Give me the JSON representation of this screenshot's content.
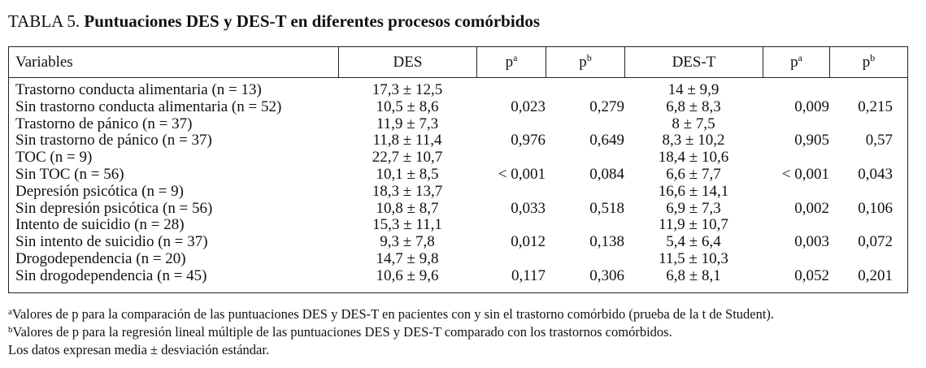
{
  "title": {
    "label": "TABLA 5.",
    "text": "Puntuaciones DES y DES-T en diferentes procesos comórbidos"
  },
  "table": {
    "headers": [
      {
        "text": "Variables",
        "sup": ""
      },
      {
        "text": "DES",
        "sup": ""
      },
      {
        "text": "p",
        "sup": "a"
      },
      {
        "text": "p",
        "sup": "b"
      },
      {
        "text": "DES-T",
        "sup": ""
      },
      {
        "text": "p",
        "sup": "a"
      },
      {
        "text": "p",
        "sup": "b"
      }
    ],
    "rows": [
      [
        "Trastorno conducta alimentaria (n = 13)",
        "17,3 ± 12,5",
        "",
        "",
        "14 ± 9,9",
        "",
        ""
      ],
      [
        "Sin trastorno conducta alimentaria (n = 52)",
        "10,5 ± 8,6",
        "0,023",
        "0,279",
        "6,8 ± 8,3",
        "0,009",
        "0,215"
      ],
      [
        "Trastorno de pánico (n = 37)",
        "11,9 ± 7,3",
        "",
        "",
        "8 ± 7,5",
        "",
        ""
      ],
      [
        "Sin trastorno de pánico (n = 37)",
        "11,8 ± 11,4",
        "0,976",
        "0,649",
        "8,3 ± 10,2",
        "0,905",
        "0,57"
      ],
      [
        "TOC (n = 9)",
        "22,7 ± 10,7",
        "",
        "",
        "18,4 ± 10,6",
        "",
        ""
      ],
      [
        "Sin TOC (n = 56)",
        "10,1 ± 8,5",
        "< 0,001",
        "0,084",
        "6,6 ± 7,7",
        "< 0,001",
        "0,043"
      ],
      [
        "Depresión psicótica (n = 9)",
        "18,3 ± 13,7",
        "",
        "",
        "16,6 ± 14,1",
        "",
        ""
      ],
      [
        "Sin depresión psicótica (n = 56)",
        "10,8 ± 8,7",
        "0,033",
        "0,518",
        "6,9 ± 7,3",
        "0,002",
        "0,106"
      ],
      [
        "Intento de suicidio (n = 28)",
        "15,3 ± 11,1",
        "",
        "",
        "11,9 ± 10,7",
        "",
        ""
      ],
      [
        "Sin intento de suicidio (n = 37)",
        "9,3 ± 7,8",
        "0,012",
        "0,138",
        "5,4 ± 6,4",
        "0,003",
        "0,072"
      ],
      [
        "Drogodependencia (n = 20)",
        "14,7 ± 9,8",
        "",
        "",
        "11,5 ± 10,3",
        "",
        ""
      ],
      [
        "Sin drogodependencia (n = 45)",
        "10,6 ± 9,6",
        "0,117",
        "0,306",
        "6,8 ± 8,1",
        "0,052",
        "0,201"
      ]
    ]
  },
  "footnotes": [
    {
      "sup": "a",
      "text": "Valores de p para la comparación de las puntuaciones DES y DES-T en pacientes con y sin el trastorno comórbido (prueba de la t de Student)."
    },
    {
      "sup": "b",
      "text": "Valores de p para la regresión lineal múltiple de las puntuaciones DES y DES-T comparado con los trastornos comórbidos."
    },
    {
      "sup": "",
      "text": "Los datos expresan media ± desviación estándar."
    }
  ]
}
